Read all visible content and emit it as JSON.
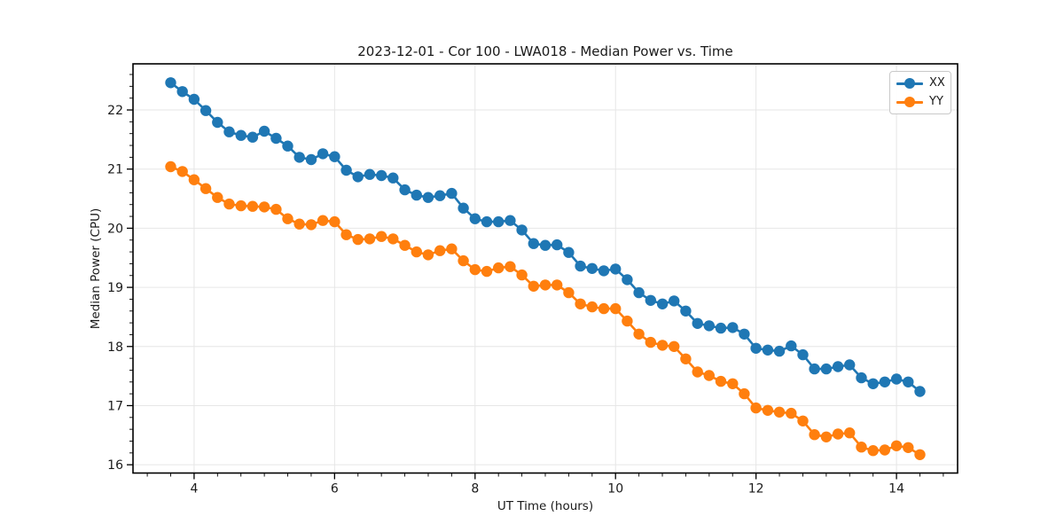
{
  "figure": {
    "background": "#ffffff",
    "spine_color": "#000000",
    "grid_color": "#e6e6e6",
    "text_color": "#1a1a1a"
  },
  "chart_data": {
    "type": "line",
    "title": "2023-12-01 - Cor 100 - LWA018 - Median Power vs. Time",
    "xlabel": "UT Time (hours)",
    "ylabel": "Median Power (CPU)",
    "xlim": [
      3.13,
      14.87
    ],
    "ylim": [
      15.86,
      22.78
    ],
    "xticks": [
      4,
      6,
      8,
      10,
      12,
      14
    ],
    "yticks": [
      16,
      17,
      18,
      19,
      20,
      21,
      22
    ],
    "minor_x_step": 0.33333,
    "minor_y_step": 0.2,
    "grid": true,
    "legend_position": "upper right",
    "marker": "o",
    "x": [
      3.667,
      3.833,
      4.0,
      4.167,
      4.333,
      4.5,
      4.667,
      4.833,
      5.0,
      5.167,
      5.333,
      5.5,
      5.667,
      5.833,
      6.0,
      6.167,
      6.333,
      6.5,
      6.667,
      6.833,
      7.0,
      7.167,
      7.333,
      7.5,
      7.667,
      7.833,
      8.0,
      8.167,
      8.333,
      8.5,
      8.667,
      8.833,
      9.0,
      9.167,
      9.333,
      9.5,
      9.667,
      9.833,
      10.0,
      10.167,
      10.333,
      10.5,
      10.667,
      10.833,
      11.0,
      11.167,
      11.333,
      11.5,
      11.667,
      11.833,
      12.0,
      12.167,
      12.333,
      12.5,
      12.667,
      12.833,
      13.0,
      13.167,
      13.333,
      13.5,
      13.667,
      13.833,
      14.0,
      14.167,
      14.333
    ],
    "series": [
      {
        "name": "XX",
        "color": "#1f77b4",
        "values": [
          22.46,
          22.31,
          22.18,
          21.99,
          21.79,
          21.63,
          21.57,
          21.54,
          21.64,
          21.52,
          21.39,
          21.2,
          21.16,
          21.26,
          21.21,
          20.98,
          20.87,
          20.91,
          20.89,
          20.85,
          20.65,
          20.56,
          20.52,
          20.55,
          20.59,
          20.34,
          20.16,
          20.11,
          20.11,
          20.13,
          19.97,
          19.74,
          19.71,
          19.72,
          19.59,
          19.36,
          19.32,
          19.28,
          19.31,
          19.13,
          18.91,
          18.78,
          18.72,
          18.77,
          18.6,
          18.39,
          18.35,
          18.31,
          18.32,
          18.21,
          17.97,
          17.94,
          17.92,
          18.01,
          17.86,
          17.62,
          17.62,
          17.66,
          17.69,
          17.47,
          17.37,
          17.4,
          17.45,
          17.4,
          17.24
        ]
      },
      {
        "name": "YY",
        "color": "#ff7f0e",
        "values": [
          21.04,
          20.96,
          20.82,
          20.67,
          20.52,
          20.41,
          20.38,
          20.37,
          20.36,
          20.32,
          20.16,
          20.07,
          20.06,
          20.13,
          20.11,
          19.89,
          19.81,
          19.82,
          19.86,
          19.82,
          19.71,
          19.6,
          19.55,
          19.62,
          19.65,
          19.45,
          19.3,
          19.27,
          19.33,
          19.35,
          19.21,
          19.02,
          19.04,
          19.04,
          18.91,
          18.72,
          18.67,
          18.64,
          18.64,
          18.43,
          18.21,
          18.07,
          18.02,
          18.0,
          17.79,
          17.57,
          17.51,
          17.41,
          17.37,
          17.2,
          16.96,
          16.92,
          16.89,
          16.87,
          16.74,
          16.51,
          16.47,
          16.52,
          16.54,
          16.3,
          16.24,
          16.25,
          16.32,
          16.29,
          16.17
        ]
      }
    ]
  }
}
